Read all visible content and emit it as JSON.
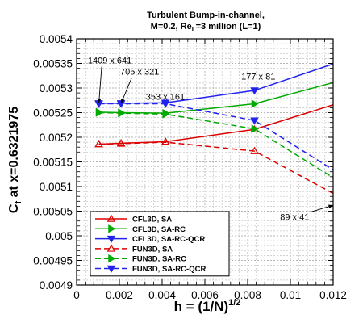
{
  "chart_data": {
    "type": "line",
    "title_line1": "Turbulent Bump-in-channel,",
    "title_line2_prefix": "M=0.2, Re",
    "title_line2_sub": "L",
    "title_line2_suffix": "=3 million (L=1)",
    "xlabel_prefix": "h = (1/N)",
    "xlabel_sup": "1/2",
    "ylabel_prefix": "C",
    "ylabel_sub": "f",
    "ylabel_suffix": " at x=0.6321975",
    "xlim": [
      0,
      0.012
    ],
    "ylim": [
      0.0049,
      0.0054
    ],
    "xticks": [
      "0",
      "0.002",
      "0.004",
      "0.006",
      "0.008",
      "0.01",
      "0.012"
    ],
    "yticks": [
      "0.0049",
      "0.00495",
      "0.005",
      "0.00505",
      "0.0051",
      "0.00515",
      "0.0052",
      "0.00525",
      "0.0053",
      "0.00535",
      "0.0054"
    ],
    "grid": true,
    "legend_position": "bottom-left",
    "series": [
      {
        "name": "CFL3D, SA",
        "color": "#dd0000",
        "dashed": false,
        "marker": "triangle-up",
        "x": [
          0.00104,
          0.00208,
          0.00416,
          0.00832,
          0.012
        ],
        "y": [
          0.005186,
          0.005188,
          0.005191,
          0.005216,
          0.005266
        ]
      },
      {
        "name": "CFL3D, SA-RC",
        "color": "#00aa00",
        "dashed": false,
        "marker": "triangle-right",
        "x": [
          0.00104,
          0.00208,
          0.00416,
          0.00832,
          0.012
        ],
        "y": [
          0.005251,
          0.00525,
          0.005249,
          0.005268,
          0.005311
        ]
      },
      {
        "name": "CFL3D, SA-RC-QCR",
        "color": "#2222ee",
        "dashed": false,
        "marker": "triangle-down",
        "x": [
          0.00104,
          0.00208,
          0.00416,
          0.00832,
          0.012
        ],
        "y": [
          0.005269,
          0.005269,
          0.00527,
          0.005295,
          0.005349
        ]
      },
      {
        "name": "FUN3D, SA",
        "color": "#dd0000",
        "dashed": true,
        "marker": "triangle-up",
        "x": [
          0.00104,
          0.00208,
          0.00416,
          0.00832,
          0.012
        ],
        "y": [
          0.005186,
          0.005187,
          0.00519,
          0.005172,
          0.005086
        ]
      },
      {
        "name": "FUN3D, SA-RC",
        "color": "#00aa00",
        "dashed": true,
        "marker": "triangle-right",
        "x": [
          0.00104,
          0.00208,
          0.00416,
          0.00832,
          0.012
        ],
        "y": [
          0.00525,
          0.005249,
          0.005247,
          0.005217,
          0.005118
        ]
      },
      {
        "name": "FUN3D, SA-RC-QCR",
        "color": "#2222ee",
        "dashed": true,
        "marker": "triangle-down",
        "x": [
          0.00104,
          0.00208,
          0.00416,
          0.00832,
          0.012
        ],
        "y": [
          0.005268,
          0.005268,
          0.005268,
          0.005234,
          0.005134
        ]
      }
    ],
    "annotations": [
      {
        "text": "1409 x 641",
        "text_x": 0.00155,
        "text_y": 0.00535,
        "arrow_to": [
          0.00104,
          0.005269
        ]
      },
      {
        "text": "705 x 321",
        "text_x": 0.00295,
        "text_y": 0.005327,
        "arrow_to": [
          0.00208,
          0.005269
        ]
      },
      {
        "text": "353 x 161",
        "text_x": 0.00415,
        "text_y": 0.005276,
        "arrow_to": null
      },
      {
        "text": "177 x 81",
        "text_x": 0.0085,
        "text_y": 0.005317,
        "arrow_to": null
      },
      {
        "text": "89 x 41",
        "text_x": 0.0102,
        "text_y": 0.005032,
        "arrow_to": [
          0.012,
          0.005062
        ]
      }
    ]
  }
}
